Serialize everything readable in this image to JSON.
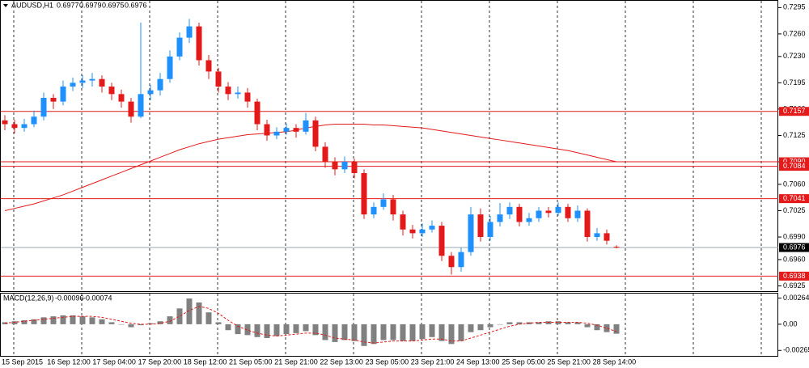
{
  "chart_data": {
    "type": "candlestick",
    "symbol": "AUDUSD,H1",
    "ylim": [
      0.6918,
      0.7304
    ],
    "yticks": [
      0.7295,
      {
        "value": 0.726,
        "label": "0.7260"
      },
      {
        "value": 0.723,
        "label": "0.7230"
      },
      0.7195,
      {
        "value": 0.716,
        "label": "0.7160"
      },
      0.7125,
      {
        "value": 0.709,
        "label": "0.7090"
      },
      {
        "value": 0.706,
        "label": "0.7060"
      },
      0.7025,
      {
        "value": 0.699,
        "label": "0.6990"
      },
      {
        "value": 0.696,
        "label": "0.6960"
      },
      0.6925
    ],
    "x_labels": [
      "15 Sep 2015",
      "16 Sep 12:00",
      "17 Sep 04:00",
      "17 Sep 20:00",
      "18 Sep 12:00",
      "21 Sep 05:00",
      "21 Sep 21:00",
      "22 Sep 13:00",
      "23 Sep 05:00",
      "23 Sep 21:00",
      "24 Sep 13:00",
      "25 Sep 05:00",
      "25 Sep 21:00",
      "28 Sep 14:00"
    ],
    "up_color": "#1e90ff",
    "down_color": "#e41a1a",
    "candles": {
      "open": [
        0.7145,
        0.714,
        0.7135,
        0.714,
        0.715,
        0.7175,
        0.717,
        0.719,
        0.7195,
        0.7198,
        0.72,
        0.719,
        0.718,
        0.717,
        0.715,
        0.718,
        0.7185,
        0.72,
        0.723,
        0.7255,
        0.727,
        0.7225,
        0.721,
        0.719,
        0.718,
        0.7182,
        0.717,
        0.714,
        0.7125,
        0.713,
        0.7135,
        0.713,
        0.7145,
        0.711,
        0.709,
        0.708,
        0.709,
        0.7075,
        0.702,
        0.703,
        0.704,
        0.702,
        0.7,
        0.6995,
        0.7,
        0.7005,
        0.6965,
        0.695,
        0.697,
        0.702,
        0.699,
        0.701,
        0.702,
        0.703,
        0.701,
        0.7015,
        0.7025,
        0.7022,
        0.703,
        0.7015,
        0.7025,
        0.699,
        0.6995,
        0.6977
      ],
      "high": [
        0.7152,
        0.7146,
        0.7147,
        0.7158,
        0.7182,
        0.718,
        0.7198,
        0.7202,
        0.7205,
        0.7208,
        0.7205,
        0.7195,
        0.7186,
        0.7175,
        0.7275,
        0.7192,
        0.7208,
        0.7238,
        0.7262,
        0.728,
        0.7275,
        0.7232,
        0.7215,
        0.7196,
        0.719,
        0.7188,
        0.7174,
        0.7146,
        0.7136,
        0.7141,
        0.714,
        0.7155,
        0.715,
        0.7116,
        0.7096,
        0.7097,
        0.7094,
        0.708,
        0.7036,
        0.7048,
        0.7046,
        0.7025,
        0.7006,
        0.7008,
        0.7012,
        0.701,
        0.697,
        0.6976,
        0.703,
        0.7028,
        0.7018,
        0.7035,
        0.7036,
        0.7034,
        0.7022,
        0.703,
        0.703,
        0.7036,
        0.7034,
        0.7032,
        0.7028,
        0.7002,
        0.7,
        0.6979
      ],
      "low": [
        0.7132,
        0.7128,
        0.713,
        0.7136,
        0.7145,
        0.716,
        0.7165,
        0.7184,
        0.7188,
        0.719,
        0.7182,
        0.7172,
        0.7162,
        0.7142,
        0.7148,
        0.7172,
        0.7178,
        0.7195,
        0.7225,
        0.7248,
        0.7218,
        0.72,
        0.7182,
        0.7172,
        0.7174,
        0.7162,
        0.7132,
        0.7118,
        0.712,
        0.7126,
        0.7122,
        0.7126,
        0.7104,
        0.7082,
        0.7072,
        0.7075,
        0.7068,
        0.7014,
        0.7015,
        0.7026,
        0.7012,
        0.6992,
        0.6988,
        0.699,
        0.6996,
        0.6958,
        0.694,
        0.6944,
        0.6965,
        0.6984,
        0.6985,
        0.7004,
        0.7014,
        0.7004,
        0.7005,
        0.701,
        0.7016,
        0.7018,
        0.701,
        0.701,
        0.6984,
        0.6985,
        0.698,
        0.6975
      ],
      "close": [
        0.714,
        0.7135,
        0.714,
        0.715,
        0.7175,
        0.717,
        0.719,
        0.7195,
        0.7198,
        0.72,
        0.719,
        0.718,
        0.717,
        0.715,
        0.718,
        0.7185,
        0.72,
        0.723,
        0.7255,
        0.727,
        0.7225,
        0.721,
        0.719,
        0.718,
        0.7182,
        0.717,
        0.714,
        0.7125,
        0.713,
        0.7135,
        0.713,
        0.7145,
        0.711,
        0.709,
        0.708,
        0.709,
        0.7075,
        0.702,
        0.703,
        0.704,
        0.702,
        0.7,
        0.6995,
        0.7,
        0.7005,
        0.6965,
        0.695,
        0.697,
        0.702,
        0.699,
        0.701,
        0.702,
        0.703,
        0.701,
        0.7015,
        0.7025,
        0.7022,
        0.703,
        0.7015,
        0.7025,
        0.699,
        0.6995,
        0.6985,
        0.6976
      ]
    },
    "ma": {
      "color": "#e41a1a",
      "values": [
        0.7025,
        0.7028,
        0.7031,
        0.7034,
        0.7038,
        0.7042,
        0.7046,
        0.7051,
        0.7056,
        0.7061,
        0.7066,
        0.7071,
        0.7076,
        0.7081,
        0.7086,
        0.7091,
        0.7096,
        0.7101,
        0.7106,
        0.711,
        0.7114,
        0.7117,
        0.712,
        0.7122,
        0.7124,
        0.7126,
        0.7127,
        0.7128,
        0.7129,
        0.713,
        0.7132,
        0.7135,
        0.7137,
        0.7139,
        0.714,
        0.714,
        0.714,
        0.714,
        0.7139,
        0.7139,
        0.7138,
        0.7137,
        0.7136,
        0.7135,
        0.7133,
        0.7131,
        0.7129,
        0.7127,
        0.7125,
        0.7123,
        0.7121,
        0.7119,
        0.7117,
        0.7115,
        0.7113,
        0.7111,
        0.7109,
        0.7107,
        0.7105,
        0.7102,
        0.7099,
        0.7096,
        0.7093,
        0.709
      ]
    },
    "levels": {
      "color": "#e41a1a",
      "values": [
        0.7157,
        {
          "value": 0.709,
          "label": "0.7090"
        },
        0.7084,
        0.7041,
        0.6938
      ]
    },
    "current_color": "#9aa5ad",
    "macd": {
      "label": "MACD(12,26,9)",
      "ylim": [
        -0.0032,
        0.0031
      ],
      "yticks": [
        0.00264,
        {
          "value": 0,
          "label": "0.00"
        },
        -0.00265
      ],
      "hist_color": "#808080",
      "signal_color": "#e41a1a",
      "hist": [
        0.0002,
        0.0003,
        0.0004,
        0.0005,
        0.0007,
        0.0008,
        0.0009,
        0.0009,
        0.0008,
        0.0007,
        0.0005,
        0.0002,
        0,
        -0.0003,
        -0.0001,
        0.0001,
        0.0003,
        0.0008,
        0.0016,
        0.0026,
        0.0022,
        0.0012,
        0.0002,
        -0.0006,
        -0.001,
        -0.0011,
        -0.0013,
        -0.0014,
        -0.0012,
        -0.001,
        -0.0009,
        -0.0007,
        -0.0011,
        -0.0016,
        -0.0018,
        -0.0016,
        -0.0017,
        -0.0022,
        -0.002,
        -0.0016,
        -0.0016,
        -0.0017,
        -0.0017,
        -0.0015,
        -0.0013,
        -0.0017,
        -0.002,
        -0.0017,
        -0.0008,
        -0.0006,
        -0.0003,
        0,
        0.0002,
        0.0002,
        0.0002,
        0.0002,
        0.0003,
        0.0003,
        0.0002,
        0.0002,
        -0.0003,
        -0.0006,
        -0.0008,
        -0.00096
      ],
      "signal": [
        0.0001,
        0.0002,
        0.0003,
        0.0004,
        0.0005,
        0.0006,
        0.0007,
        0.0008,
        0.0008,
        0.0008,
        0.0007,
        0.0005,
        0.0003,
        0.0001,
        0,
        0,
        0.0001,
        0.0003,
        0.0008,
        0.0014,
        0.0018,
        0.0016,
        0.0011,
        0.0004,
        -0.0002,
        -0.0006,
        -0.0009,
        -0.0011,
        -0.0012,
        -0.0011,
        -0.001,
        -0.0009,
        -0.0009,
        -0.0011,
        -0.0014,
        -0.0015,
        -0.0016,
        -0.0018,
        -0.0019,
        -0.0018,
        -0.0017,
        -0.0017,
        -0.0017,
        -0.0016,
        -0.0015,
        -0.0015,
        -0.0017,
        -0.0017,
        -0.0014,
        -0.0011,
        -0.0008,
        -0.0005,
        -0.0002,
        0,
        0.0001,
        0.0002,
        0.0002,
        0.0002,
        0.0002,
        0.0002,
        0.0001,
        -0.0001,
        -0.0004,
        -0.00074
      ]
    }
  }
}
